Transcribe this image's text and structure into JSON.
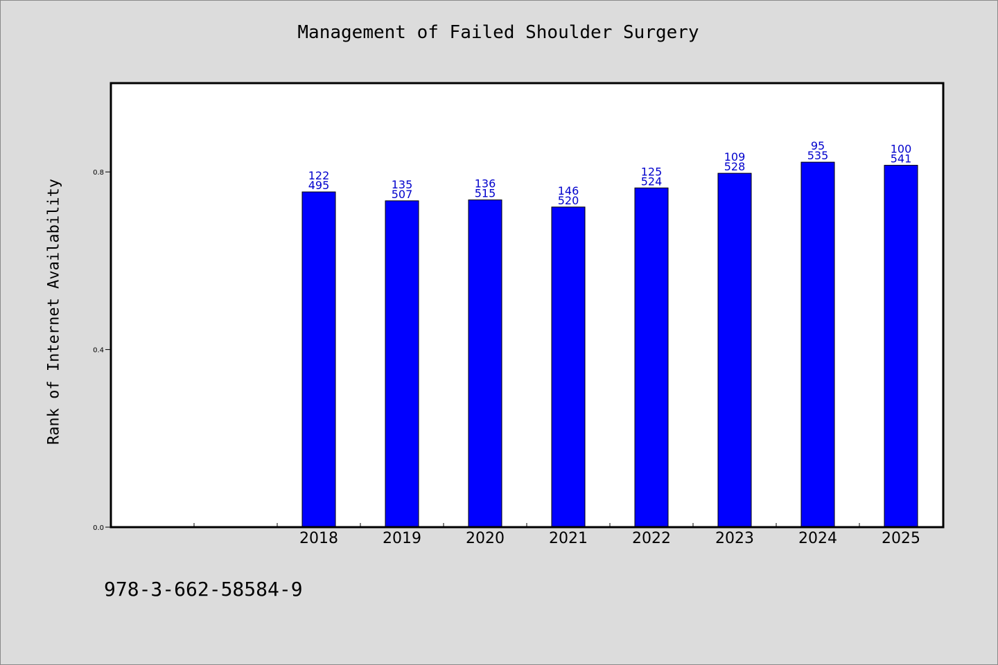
{
  "chart_data": {
    "type": "bar",
    "title": "Management of Failed Shoulder Surgery",
    "xlabel": "",
    "ylabel": "Rank of Internet Availability",
    "categories": [
      "2018",
      "2019",
      "2020",
      "2021",
      "2022",
      "2023",
      "2024",
      "2025"
    ],
    "values": [
      0.755,
      0.735,
      0.737,
      0.721,
      0.764,
      0.797,
      0.822,
      0.815
    ],
    "bar_labels_top": [
      "122",
      "135",
      "136",
      "146",
      "125",
      "109",
      "95",
      "100"
    ],
    "bar_labels_bottom": [
      "495",
      "507",
      "515",
      "520",
      "524",
      "528",
      "535",
      "541"
    ],
    "ylim": [
      0,
      1.0
    ],
    "yticks": [
      0.0,
      0.4,
      0.8
    ],
    "ytick_labels": [
      "0.0",
      "0.4",
      "0.8"
    ],
    "bar_color": "#0000ff",
    "label_color": "#0000cc",
    "grid": false,
    "legend": "none"
  },
  "footer": {
    "code": "978-3-662-58584-9"
  }
}
